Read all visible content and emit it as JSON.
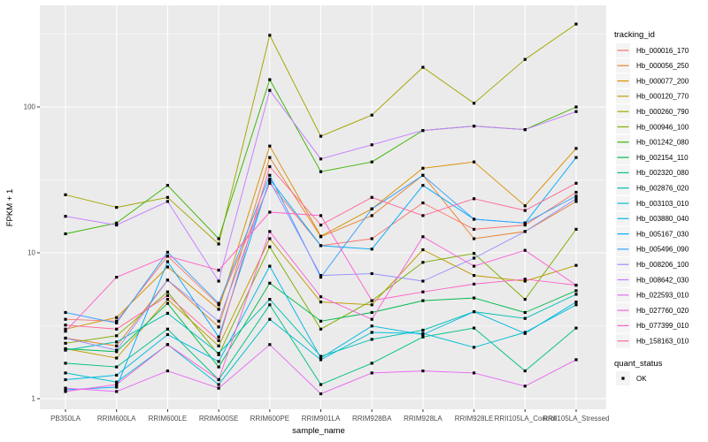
{
  "chart_data": {
    "type": "line",
    "title": "",
    "xlabel": "sample_name",
    "ylabel": "FPKM + 1",
    "y_scale": "log10",
    "y_ticks": [
      1,
      10,
      100
    ],
    "y_minor_ticks": [
      3.162,
      31.62,
      316.2
    ],
    "ylim": [
      0.85,
      500
    ],
    "grid": true,
    "legend_position": "right",
    "marker": "square",
    "marker_color": "#000000",
    "categories": [
      "PB350LA",
      "RRIM600LA",
      "RRIM600LE",
      "RRIM600SE",
      "RRIM600PE",
      "RRIM901LA",
      "RRIM928BA",
      "RRIM928LA",
      "RRIM928LE",
      "RRII105LA_Control",
      "RRII105LA_Stressed"
    ],
    "series": [
      {
        "name": "Hb_000016_170",
        "color": "#F8766D",
        "values": [
          3.5,
          3.4,
          9.5,
          4.4,
          30,
          11.2,
          12.5,
          22,
          14.5,
          15.5,
          26
        ]
      },
      {
        "name": "Hb_000056_250",
        "color": "#EA8331",
        "values": [
          2.6,
          2.3,
          6.5,
          3.1,
          45,
          12.9,
          18,
          34,
          12.5,
          14,
          22.5
        ]
      },
      {
        "name": "Hb_000077_200",
        "color": "#D89000",
        "values": [
          3.0,
          3.6,
          8.0,
          4.1,
          54,
          13,
          20,
          38,
          42,
          21,
          52
        ]
      },
      {
        "name": "Hb_000120_770",
        "color": "#C09B00",
        "values": [
          2.2,
          1.9,
          4.8,
          2.3,
          12.5,
          4.6,
          4.4,
          10.5,
          7.0,
          6.4,
          8.2
        ]
      },
      {
        "name": "Hb_000260_790",
        "color": "#A3A500",
        "values": [
          25,
          20.5,
          24,
          11.5,
          310,
          63,
          88,
          187,
          106,
          212,
          370
        ]
      },
      {
        "name": "Hb_000946_100",
        "color": "#7CAE00",
        "values": [
          2.4,
          2.7,
          5.4,
          2.0,
          11,
          3.0,
          4.7,
          8.6,
          9.9,
          4.8,
          14.5
        ]
      },
      {
        "name": "Hb_001242_080",
        "color": "#39B600",
        "values": [
          13.5,
          16,
          29,
          12.5,
          154,
          36,
          42,
          69,
          74,
          70,
          100
        ]
      },
      {
        "name": "Hb_002154_110",
        "color": "#00BB4E",
        "values": [
          2.2,
          2.1,
          4.5,
          1.65,
          6.2,
          3.4,
          3.9,
          4.7,
          4.9,
          3.9,
          5.5
        ]
      },
      {
        "name": "Hb_002320_080",
        "color": "#00C087",
        "values": [
          1.75,
          1.65,
          3.0,
          1.35,
          4.4,
          1.25,
          1.75,
          2.65,
          3.05,
          1.55,
          3.05
        ]
      },
      {
        "name": "Hb_002876_020",
        "color": "#00C0B2",
        "values": [
          2.15,
          2.45,
          3.85,
          2.05,
          4.8,
          1.95,
          2.55,
          2.95,
          3.95,
          3.55,
          5.2
        ]
      },
      {
        "name": "Hb_003103_010",
        "color": "#00BFD4",
        "values": [
          1.5,
          1.3,
          2.35,
          1.25,
          3.5,
          1.85,
          2.85,
          2.8,
          2.25,
          2.85,
          4.4
        ]
      },
      {
        "name": "Hb_003880_040",
        "color": "#00B9E3",
        "values": [
          1.35,
          1.45,
          2.75,
          1.8,
          8.1,
          1.9,
          3.15,
          2.75,
          3.95,
          2.8,
          4.6
        ]
      },
      {
        "name": "Hb_005167_030",
        "color": "#00ACFC",
        "values": [
          1.15,
          1.2,
          8.7,
          2.65,
          32,
          11.2,
          10.6,
          29,
          17,
          16,
          45
        ]
      },
      {
        "name": "Hb_005496_090",
        "color": "#35A2FF",
        "values": [
          3.9,
          3.3,
          10.1,
          4.5,
          34,
          6.8,
          20,
          34,
          17,
          16,
          24.5
        ]
      },
      {
        "name": "Hb_008206_100",
        "color": "#9590FF",
        "values": [
          2.6,
          2.15,
          6.5,
          3.4,
          31,
          7.0,
          7.2,
          6.4,
          9.2,
          14,
          23.5
        ]
      },
      {
        "name": "Hb_008642_030",
        "color": "#C77CFF",
        "values": [
          17.8,
          15.5,
          22.5,
          6.4,
          130,
          44,
          55,
          69,
          74,
          70,
          93
        ]
      },
      {
        "name": "Hb_022593_010",
        "color": "#E76BF3",
        "values": [
          1.18,
          1.12,
          1.55,
          1.18,
          2.35,
          1.08,
          1.5,
          1.55,
          1.5,
          1.22,
          1.85
        ]
      },
      {
        "name": "Hb_027760_020",
        "color": "#FA62DB",
        "values": [
          1.12,
          1.25,
          2.35,
          1.35,
          14,
          5.0,
          3.5,
          12.9,
          8.1,
          10.4,
          6.0
        ]
      },
      {
        "name": "Hb_077399_010",
        "color": "#FF61C9",
        "values": [
          2.9,
          6.8,
          9.5,
          7.6,
          19,
          18,
          4.7,
          5.4,
          6.1,
          6.6,
          6.0
        ]
      },
      {
        "name": "Hb_158163_010",
        "color": "#FF6A98",
        "values": [
          3.2,
          3.0,
          5.1,
          2.5,
          39,
          15.5,
          24,
          18,
          23.5,
          19.5,
          30
        ]
      }
    ]
  },
  "legend": {
    "tracking_title": "tracking_id",
    "quant_title": "quant_status",
    "quant_items": [
      {
        "label": "OK",
        "marker": "black-square"
      }
    ]
  },
  "style_colors": {
    "panel_bg": "#EBEBEB",
    "grid": "#FFFFFF",
    "tick_text": "#4D4D4D",
    "tick_mark": "#333333",
    "legend_key_bg": "#F4F4F4",
    "point": "#000000"
  }
}
